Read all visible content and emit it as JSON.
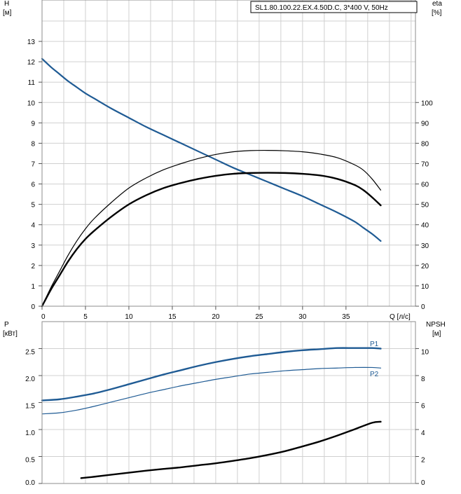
{
  "header": {
    "pump_label": "SL1.80.100.22.EX.4.50D.C, 3*400 V, 50Hz"
  },
  "chart_data": [
    {
      "type": "line",
      "xlabel": "Q [л/с]",
      "x_ticks": [
        "0",
        "5",
        "10",
        "15",
        "20",
        "25",
        "30",
        "35"
      ],
      "xlim": [
        0,
        43
      ],
      "left_axis": {
        "label_lines": [
          "H",
          "[м]"
        ],
        "ylim": [
          0,
          14
        ],
        "ticks": [
          "0",
          "1",
          "2",
          "3",
          "4",
          "5",
          "6",
          "7",
          "8",
          "9",
          "10",
          "11",
          "12",
          "13"
        ]
      },
      "right_axis": {
        "label_lines": [
          "eta",
          "[%]"
        ],
        "ylim": [
          0,
          140
        ],
        "ticks": [
          "0",
          "10",
          "20",
          "30",
          "40",
          "50",
          "60",
          "70",
          "80",
          "90",
          "100"
        ]
      },
      "grid": true,
      "series": [
        {
          "axis": "left",
          "color": "#1f5b94",
          "width": 2.2,
          "x": [
            0,
            1,
            2,
            3,
            4,
            5,
            6,
            8,
            10,
            12,
            14,
            16,
            18,
            20,
            22,
            24,
            26,
            28,
            30,
            32,
            34,
            36,
            37,
            38,
            39
          ],
          "y": [
            12.15,
            11.75,
            11.4,
            11.05,
            10.75,
            10.45,
            10.2,
            9.7,
            9.25,
            8.8,
            8.4,
            8.0,
            7.6,
            7.2,
            6.8,
            6.45,
            6.1,
            5.75,
            5.4,
            5.0,
            4.6,
            4.15,
            3.85,
            3.55,
            3.2
          ]
        },
        {
          "axis": "right",
          "color": "#000000",
          "width": 1.2,
          "x": [
            0,
            1,
            2,
            3,
            4,
            5,
            6,
            8,
            10,
            12,
            14,
            16,
            18,
            20,
            22,
            24,
            26,
            28,
            30,
            32,
            34,
            36,
            37,
            38,
            39
          ],
          "y": [
            0,
            9,
            17,
            25,
            32,
            38,
            43,
            51,
            58,
            63,
            67,
            70,
            72.5,
            74.5,
            75.8,
            76.4,
            76.5,
            76.3,
            75.8,
            74.7,
            72.9,
            69.4,
            66.8,
            62.5,
            57
          ]
        },
        {
          "axis": "right",
          "color": "#000000",
          "width": 2.4,
          "x": [
            0,
            1,
            2,
            3,
            4,
            5,
            6,
            8,
            10,
            12,
            14,
            16,
            18,
            20,
            22,
            24,
            26,
            28,
            30,
            32,
            34,
            36,
            37,
            38,
            39
          ],
          "y": [
            0,
            8,
            15,
            22,
            28,
            33,
            37,
            44,
            50,
            54.5,
            58,
            60.5,
            62.5,
            64,
            65,
            65.4,
            65.5,
            65.4,
            65,
            64.2,
            62.5,
            59.5,
            57,
            53.5,
            49.5
          ]
        }
      ]
    },
    {
      "type": "line",
      "xlim": [
        0,
        43
      ],
      "left_axis": {
        "label_lines": [
          "P",
          "[кВт]"
        ],
        "ylim": [
          0,
          3
        ],
        "ticks": [
          "0.0",
          "0.5",
          "1.0",
          "1.5",
          "2.0",
          "2.5"
        ]
      },
      "right_axis": {
        "label_lines": [
          "NPSH",
          "[м]"
        ],
        "ylim": [
          0,
          12
        ],
        "ticks": [
          "0",
          "2",
          "4",
          "6",
          "8",
          "10"
        ]
      },
      "grid": true,
      "series": [
        {
          "name": "P1",
          "axis": "left",
          "color": "#1f5b94",
          "width": 2.4,
          "x": [
            0,
            2,
            4,
            6,
            8,
            10,
            12,
            14,
            16,
            18,
            20,
            22,
            24,
            26,
            28,
            30,
            32,
            34,
            36,
            38,
            39
          ],
          "y": [
            1.54,
            1.56,
            1.61,
            1.67,
            1.75,
            1.84,
            1.93,
            2.02,
            2.1,
            2.18,
            2.25,
            2.31,
            2.36,
            2.4,
            2.44,
            2.47,
            2.49,
            2.51,
            2.51,
            2.51,
            2.5
          ]
        },
        {
          "name": "P2",
          "axis": "left",
          "color": "#1f5b94",
          "width": 1.2,
          "x": [
            0,
            2,
            4,
            6,
            8,
            10,
            12,
            14,
            16,
            18,
            20,
            22,
            24,
            26,
            28,
            30,
            32,
            34,
            36,
            38,
            39
          ],
          "y": [
            1.29,
            1.31,
            1.36,
            1.43,
            1.51,
            1.59,
            1.67,
            1.74,
            1.81,
            1.87,
            1.93,
            1.98,
            2.03,
            2.06,
            2.09,
            2.11,
            2.13,
            2.14,
            2.15,
            2.15,
            2.14
          ]
        },
        {
          "axis": "right",
          "color": "#000000",
          "width": 2.4,
          "x": [
            4.5,
            6,
            8,
            10,
            12,
            14,
            16,
            18,
            20,
            22,
            24,
            26,
            28,
            30,
            32,
            34,
            36,
            38,
            39
          ],
          "y": [
            0.4,
            0.5,
            0.65,
            0.8,
            0.95,
            1.08,
            1.2,
            1.35,
            1.5,
            1.68,
            1.88,
            2.12,
            2.4,
            2.75,
            3.12,
            3.55,
            4.02,
            4.5,
            4.58
          ]
        }
      ]
    }
  ]
}
